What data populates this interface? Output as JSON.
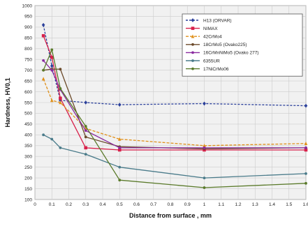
{
  "chart_data": {
    "type": "line",
    "title": "",
    "xlabel": "Distance from surface , mm",
    "ylabel": "Hardness, HV0,1",
    "xlim": [
      0,
      1.6
    ],
    "ylim": [
      100,
      1000
    ],
    "x_ticks": [
      "0",
      "0.1",
      "0.2",
      "0.3",
      "0.4",
      "0.5",
      "0.6",
      "0.7",
      "0.8",
      "0.9",
      "1",
      "1.1",
      "1.2",
      "1.3",
      "1.4",
      "1.5",
      "1.6"
    ],
    "y_ticks": [
      "100",
      "150",
      "200",
      "250",
      "300",
      "350",
      "400",
      "450",
      "500",
      "550",
      "600",
      "650",
      "700",
      "750",
      "800",
      "850",
      "900",
      "950",
      "1000"
    ],
    "grid": true,
    "legend_position": "top-right",
    "series": [
      {
        "name": "H13 (ORVAR)",
        "color": "#2a3f9a",
        "dash": "3,2",
        "marker": "diamond",
        "x": [
          0.05,
          0.1,
          0.15,
          0.3,
          0.5,
          1.0,
          1.6
        ],
        "y": [
          910,
          720,
          560,
          550,
          540,
          545,
          535
        ]
      },
      {
        "name": "NIMAX",
        "color": "#d8204a",
        "dash": "",
        "marker": "square",
        "x": [
          0.05,
          0.1,
          0.15,
          0.3,
          0.5,
          1.0,
          1.6
        ],
        "y": [
          860,
          760,
          570,
          340,
          330,
          330,
          330
        ]
      },
      {
        "name": "42CrMo4",
        "color": "#e0901a",
        "dash": "4,2",
        "marker": "triangle",
        "x": [
          0.05,
          0.1,
          0.15,
          0.3,
          0.5,
          1.0,
          1.6
        ],
        "y": [
          660,
          560,
          550,
          430,
          380,
          350,
          360
        ]
      },
      {
        "name": "18CrMo5 (Ovako225)",
        "color": "#6b4a2a",
        "dash": "",
        "marker": "circle",
        "x": [
          0.05,
          0.1,
          0.15,
          0.3,
          0.5,
          1.0,
          1.6
        ],
        "y": [
          700,
          705,
          705,
          390,
          345,
          335,
          340
        ]
      },
      {
        "name": "16CrMnNiMo5 (Ovako 277)",
        "color": "#8a2aa0",
        "dash": "",
        "marker": "circle",
        "x": [
          0.05,
          0.1,
          0.15,
          0.3,
          0.5,
          1.0,
          1.6
        ],
        "y": [
          745,
          700,
          610,
          420,
          340,
          340,
          340
        ]
      },
      {
        "name": "6355UR",
        "color": "#4a7b8a",
        "dash": "",
        "marker": "circle",
        "x": [
          0.05,
          0.1,
          0.15,
          0.3,
          0.5,
          1.0,
          1.6
        ],
        "y": [
          400,
          380,
          340,
          310,
          250,
          200,
          220
        ]
      },
      {
        "name": "17NiCrMo06",
        "color": "#5a7a2a",
        "dash": "",
        "marker": "circle",
        "x": [
          0.05,
          0.1,
          0.15,
          0.3,
          0.5,
          1.0,
          1.6
        ],
        "y": [
          700,
          795,
          615,
          440,
          190,
          155,
          175
        ]
      }
    ]
  }
}
